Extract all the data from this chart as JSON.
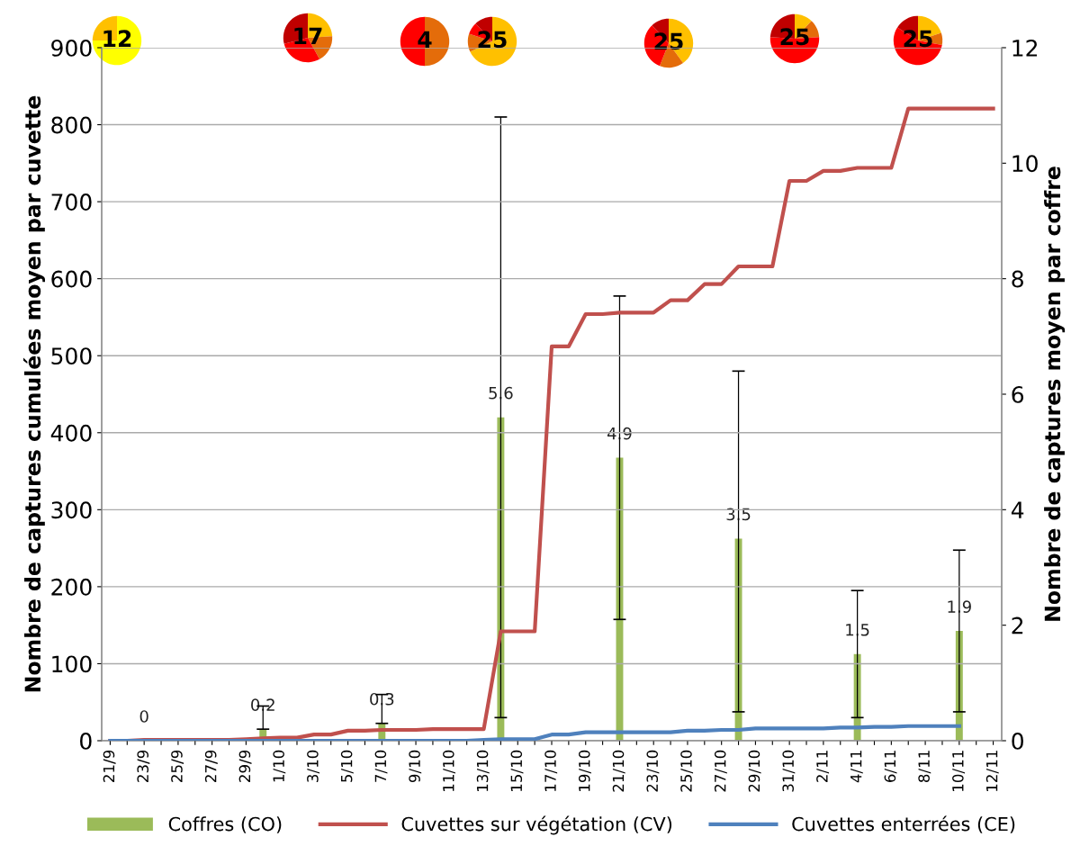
{
  "chart_data": [
    {
      "type": "bar",
      "ylabel": "Nombre de captures cumulées moyen par cuvette",
      "y2label": "Nombre de captures moyen par coffre",
      "categories": [
        "21/9",
        null,
        "23/9",
        null,
        "25/9",
        null,
        "27/9",
        null,
        "29/9",
        null,
        "1/10",
        null,
        "3/10",
        null,
        "5/10",
        null,
        "7/10",
        null,
        "9/10",
        null,
        "11/10",
        null,
        "13/10",
        null,
        "15/10",
        null,
        "17/10",
        null,
        "19/10",
        null,
        "21/10",
        null,
        "23/10",
        null,
        "25/10",
        null,
        "27/10",
        null,
        "29/10",
        null,
        "31/10",
        null,
        "2/11",
        null,
        "4/11",
        null,
        "6/11",
        null,
        "8/11",
        null,
        "10/11",
        null,
        "12/11"
      ],
      "series": [
        {
          "name": "Coffres (CO)",
          "type": "bar",
          "axis": "y2",
          "color": "#9bbb59",
          "values": [
            null,
            null,
            0,
            null,
            null,
            null,
            null,
            null,
            null,
            0.2,
            null,
            null,
            null,
            null,
            null,
            null,
            0.3,
            null,
            null,
            null,
            null,
            null,
            null,
            5.6,
            null,
            null,
            null,
            null,
            null,
            null,
            4.9,
            null,
            null,
            null,
            null,
            null,
            null,
            3.5,
            null,
            null,
            null,
            null,
            null,
            null,
            1.5,
            null,
            null,
            null,
            null,
            null,
            1.9,
            null,
            null
          ],
          "value_labels": [
            null,
            null,
            "0",
            null,
            null,
            null,
            null,
            null,
            null,
            "0.2",
            null,
            null,
            null,
            null,
            null,
            null,
            "0.3",
            null,
            null,
            null,
            null,
            null,
            null,
            "5.6",
            null,
            null,
            null,
            null,
            null,
            null,
            "4.9",
            null,
            null,
            null,
            null,
            null,
            null,
            "3.5",
            null,
            null,
            null,
            null,
            null,
            null,
            "1.5",
            null,
            null,
            null,
            null,
            null,
            "1.9",
            null,
            null
          ],
          "errors": [
            null,
            null,
            null,
            null,
            null,
            null,
            null,
            null,
            null,
            [
              0.2,
              0.6
            ],
            null,
            null,
            null,
            null,
            null,
            null,
            [
              0.3,
              0.8
            ],
            null,
            null,
            null,
            null,
            null,
            null,
            [
              0.4,
              10.8
            ],
            null,
            null,
            null,
            null,
            null,
            null,
            [
              2.1,
              7.7
            ],
            null,
            null,
            null,
            null,
            null,
            null,
            [
              0.5,
              6.4
            ],
            null,
            null,
            null,
            null,
            null,
            null,
            [
              0.4,
              2.6
            ],
            null,
            null,
            null,
            null,
            null,
            [
              0.5,
              3.3
            ],
            null,
            null
          ]
        },
        {
          "name": "Cuvettes sur végétation (CV)",
          "type": "line",
          "axis": "y",
          "color": "#c0504d",
          "values": [
            0,
            0,
            1,
            1,
            1,
            1,
            1,
            1,
            2,
            3,
            4,
            4,
            8,
            8,
            13,
            13,
            14,
            14,
            14,
            15,
            15,
            15,
            15,
            142,
            142,
            142,
            512,
            512,
            554,
            554,
            556,
            556,
            556,
            572,
            572,
            593,
            593,
            616,
            616,
            616,
            727,
            727,
            740,
            740,
            744,
            744,
            744,
            821,
            821,
            821,
            821,
            821,
            821
          ]
        },
        {
          "name": "Cuvettes enterrées (CE)",
          "type": "line",
          "axis": "y",
          "color": "#4f81bd",
          "values": [
            0,
            0,
            0,
            0,
            0,
            0,
            0,
            0,
            0,
            0,
            0,
            0,
            0,
            0,
            0,
            0,
            0,
            0,
            0,
            0,
            0,
            0,
            1,
            2,
            2,
            2,
            8,
            8,
            11,
            11,
            11,
            11,
            11,
            11,
            13,
            13,
            14,
            14,
            16,
            16,
            16,
            16,
            16,
            17,
            17,
            18,
            18,
            19,
            19,
            19,
            19,
            null,
            null
          ]
        }
      ],
      "ylim": [
        0,
        900
      ],
      "yticks": [
        0,
        100,
        200,
        300,
        400,
        500,
        600,
        700,
        800,
        900
      ],
      "y2lim": [
        0,
        12
      ],
      "y2ticks": [
        0,
        2,
        4,
        6,
        8,
        10,
        12
      ],
      "grid": "y",
      "legend": "bottom"
    },
    {
      "type": "pie",
      "categories": [
        null,
        null
      ],
      "values": [
        75,
        25
      ],
      "colors": [
        "#ffff00",
        "#ffc000"
      ],
      "annotations": [
        "12"
      ]
    },
    {
      "type": "pie",
      "categories": [
        null,
        null,
        null,
        null
      ],
      "values": [
        24,
        18,
        29,
        29
      ],
      "colors": [
        "#ffc000",
        "#e46c0a",
        "#ff0000",
        "#c00000"
      ],
      "annotations": [
        "17"
      ]
    },
    {
      "type": "pie",
      "categories": [
        null,
        null
      ],
      "values": [
        50,
        50
      ],
      "colors": [
        "#e46c0a",
        "#ff0000"
      ],
      "annotations": [
        "4"
      ]
    },
    {
      "type": "pie",
      "categories": [
        null,
        null,
        null,
        null
      ],
      "values": [
        68,
        12,
        8,
        12
      ],
      "colors": [
        "#ffc000",
        "#e46c0a",
        "#ff0000",
        "#c00000"
      ],
      "annotations": [
        "25"
      ]
    },
    {
      "type": "pie",
      "categories": [
        null,
        null,
        null,
        null
      ],
      "values": [
        40,
        16,
        32,
        12
      ],
      "colors": [
        "#ffc000",
        "#e46c0a",
        "#ff0000",
        "#c00000"
      ],
      "annotations": [
        "25"
      ]
    },
    {
      "type": "pie",
      "categories": [
        null,
        null,
        null,
        null
      ],
      "values": [
        12,
        12,
        52,
        24
      ],
      "colors": [
        "#ffc000",
        "#e46c0a",
        "#ff0000",
        "#c00000"
      ],
      "annotations": [
        "25"
      ]
    },
    {
      "type": "pie",
      "categories": [
        null,
        null,
        null,
        null
      ],
      "values": [
        20,
        8,
        56,
        16
      ],
      "colors": [
        "#ffc000",
        "#e46c0a",
        "#ff0000",
        "#c00000"
      ],
      "annotations": [
        "25"
      ]
    }
  ]
}
